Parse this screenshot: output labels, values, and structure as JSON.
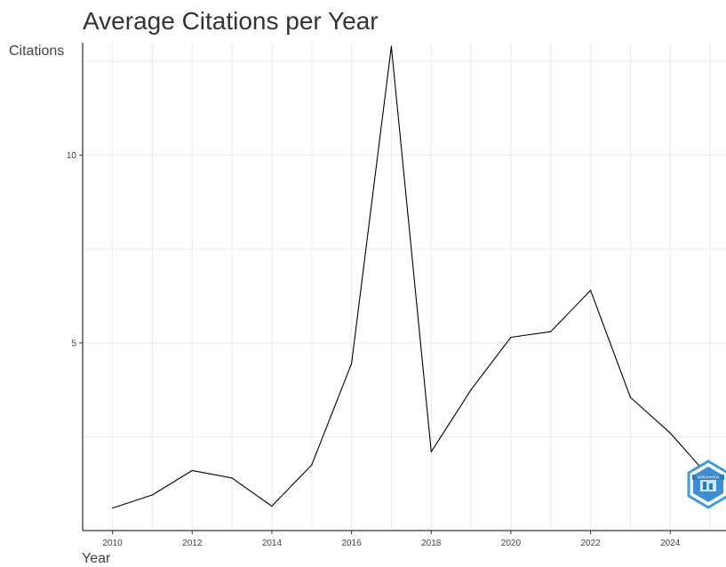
{
  "chart_data": {
    "type": "line",
    "title": "Average Citations per Year",
    "xlabel": "Year",
    "ylabel": "Citations",
    "x": [
      2010,
      2011,
      2012,
      2013,
      2014,
      2015,
      2016,
      2017,
      2018,
      2019,
      2020,
      2021,
      2022,
      2023,
      2024,
      2025
    ],
    "series": [
      {
        "values": [
          0.6,
          0.95,
          1.6,
          1.4,
          0.65,
          1.75,
          4.45,
          12.9,
          2.1,
          3.75,
          5.15,
          5.3,
          6.4,
          3.55,
          2.6,
          1.4
        ]
      }
    ],
    "xticks": [
      "2010",
      "2012",
      "2014",
      "2016",
      "2018",
      "2020",
      "2022",
      "2024"
    ],
    "yticks": [
      "5",
      "10"
    ],
    "xlim": [
      2009.25,
      2025.4
    ],
    "ylim": [
      0,
      13.0
    ],
    "grid": true,
    "line_color": "#000000"
  },
  "watermark": {
    "icon": "biblioshiny-logo-icon",
    "text": "bibliometrix"
  }
}
